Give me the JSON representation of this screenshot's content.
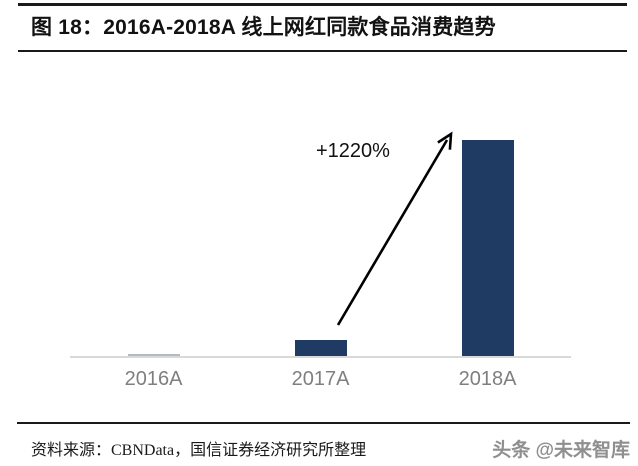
{
  "header": {
    "title": "图 18：2016A-2018A 线上网红同款食品消费趋势"
  },
  "chart_data": {
    "type": "bar",
    "title": "2016A-2018A 线上网红同款食品消费趋势",
    "categories": [
      "2016A",
      "2017A",
      "2018A"
    ],
    "values": [
      0.9,
      7.6,
      100
    ],
    "value_note": "no y-axis or data labels shown; values are relative bar heights normalized to 2018A = 100 (2018A ≈ 13.2× 2017A, matching the +1220% annotation)",
    "annotation": "+1220%",
    "xlabel": "",
    "ylabel": "",
    "ylim": [
      0,
      110
    ],
    "grid": false,
    "legend": false,
    "bar_colors": [
      "#b4bac3",
      "#1f3a63",
      "#1f3a63"
    ],
    "axis_color": "#d9d9d9",
    "label_color": "#7f7f7f",
    "annotation_color": "#111111",
    "arrow_color": "#000000"
  },
  "footer": {
    "source": "资料来源：CBNData，国信证券经济研究所整理",
    "watermark": "头条 @未来智库"
  }
}
